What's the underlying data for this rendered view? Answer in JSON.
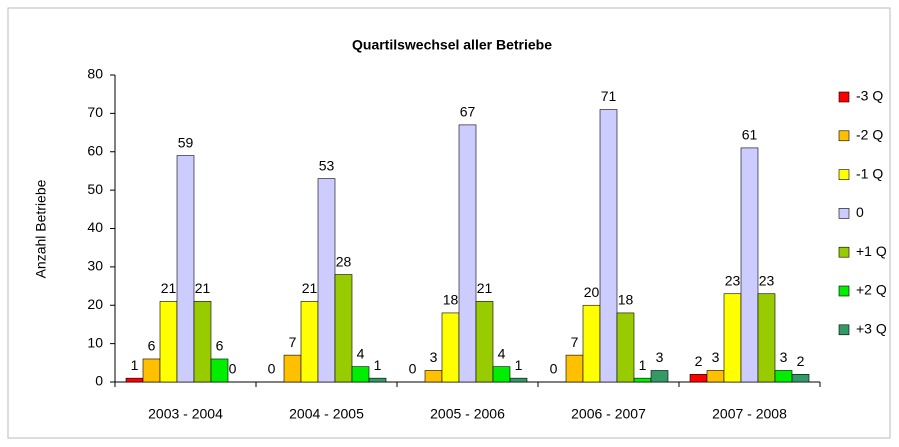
{
  "chart_data": {
    "type": "bar",
    "title": "Quartilswechsel aller Betriebe",
    "y_label": "Anzahl Betriebe",
    "categories": [
      "2003 - 2004",
      "2004 - 2005",
      "2005 - 2006",
      "2006 - 2007",
      "2007 - 2008"
    ],
    "series": [
      {
        "name": "-3 Q",
        "color": "#ff0000",
        "values": [
          1,
          0,
          0,
          0,
          2
        ]
      },
      {
        "name": "-2 Q",
        "color": "#ffc000",
        "values": [
          6,
          7,
          3,
          7,
          3
        ]
      },
      {
        "name": "-1 Q",
        "color": "#ffff00",
        "values": [
          21,
          21,
          18,
          20,
          23
        ]
      },
      {
        "name": "0",
        "color": "#ccccff",
        "values": [
          59,
          53,
          67,
          71,
          61
        ]
      },
      {
        "name": "+1 Q",
        "color": "#99cc00",
        "values": [
          21,
          28,
          21,
          18,
          23
        ]
      },
      {
        "name": "+2 Q",
        "color": "#00ee00",
        "values": [
          6,
          4,
          4,
          1,
          3
        ]
      },
      {
        "name": "+3 Q",
        "color": "#339966",
        "values": [
          0,
          1,
          1,
          3,
          2
        ]
      }
    ],
    "ylim": [
      0,
      80
    ],
    "yticks": [
      0,
      10,
      20,
      30,
      40,
      50,
      60,
      70,
      80
    ],
    "legend": "right"
  }
}
